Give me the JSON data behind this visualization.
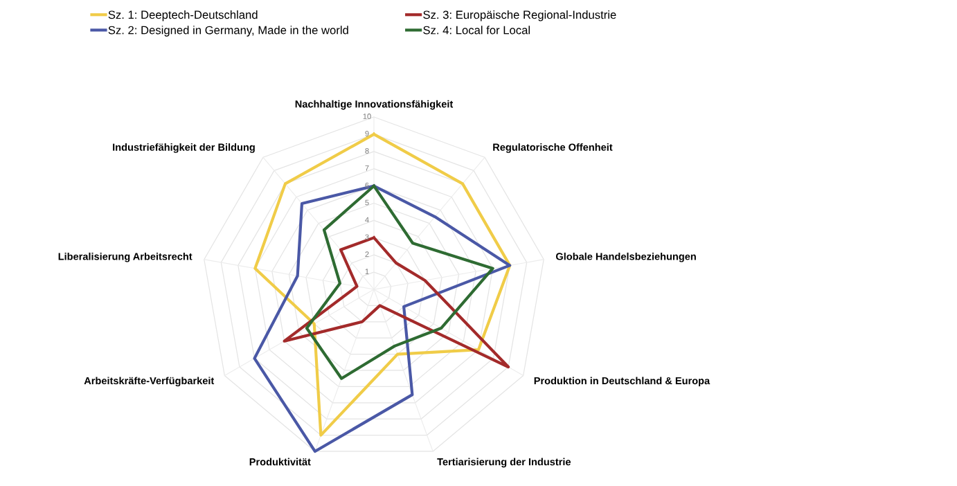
{
  "chart_data": {
    "type": "radar",
    "categories": [
      "Nachhaltige Innovationsfähigkeit",
      "Regulatorische Offenheit",
      "Globale Handelsbeziehungen",
      "Produktion in Deutschland & Europa",
      "Tertiarisierung der Industrie",
      "Produktivität",
      "Arbeitskräfte-Verfügbarkeit",
      "Liberalisierung Arbeitsrecht",
      "Industriefähigkeit der Bildung"
    ],
    "series": [
      {
        "name": "Sz. 1: Deeptech-Deutschland",
        "color": "#f0cc48",
        "values": [
          9,
          8,
          8,
          7,
          4,
          9,
          4,
          7,
          8
        ]
      },
      {
        "name": "Sz. 2: Designed in Germany, Made in the world",
        "color": "#4a58a6",
        "values": [
          6,
          5.5,
          8,
          2,
          6.5,
          10,
          8,
          4.5,
          6.5
        ]
      },
      {
        "name": "Sz. 3: Europäische Regional-Industrie",
        "color": "#a32a2a",
        "values": [
          3,
          2,
          3,
          9,
          1,
          2,
          6,
          1,
          3
        ]
      },
      {
        "name": "Sz. 4: Local for Local",
        "color": "#2e6b32",
        "values": [
          6,
          3.5,
          7,
          4.5,
          3.5,
          5.5,
          4.5,
          2,
          4.5
        ]
      }
    ],
    "ylim": [
      0,
      10
    ],
    "yticks": [
      1,
      2,
      3,
      4,
      5,
      6,
      7,
      8,
      9,
      10
    ],
    "grid": true,
    "legend": "top left"
  }
}
